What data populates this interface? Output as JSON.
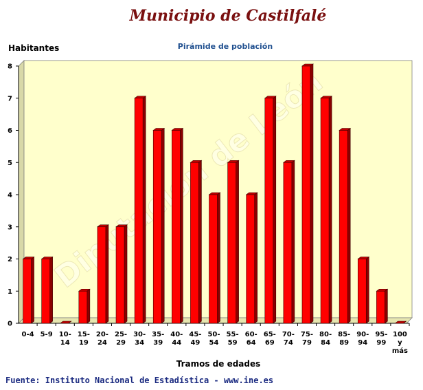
{
  "header": {
    "title": "Municipio de Castilfalé",
    "source": "Fuente: Instituto Nacional de Estadística - www.ine.es",
    "watermark": "Diputación de León"
  },
  "colors": {
    "bar_face": "#ff0000",
    "bar_side": "#8a0000",
    "bar_top": "#c00000",
    "plot_bg": "#ffffcc",
    "title": "#7a1010",
    "subtitle": "#1f4f8f",
    "source": "#1a2a80"
  },
  "chart_data": {
    "type": "bar",
    "title": "Pirámide de población",
    "xlabel": "Tramos de edades",
    "ylabel": "Habitantes",
    "ylim": [
      0,
      8
    ],
    "yticks": [
      0,
      1,
      2,
      3,
      4,
      5,
      6,
      7,
      8
    ],
    "grid": false,
    "legend": "none",
    "categories": [
      [
        "0-4"
      ],
      [
        "5-9"
      ],
      [
        "10-",
        "14"
      ],
      [
        "15-",
        "19"
      ],
      [
        "20-",
        "24"
      ],
      [
        "25-",
        "29"
      ],
      [
        "30-",
        "34"
      ],
      [
        "35-",
        "39"
      ],
      [
        "40-",
        "44"
      ],
      [
        "45-",
        "49"
      ],
      [
        "50-",
        "54"
      ],
      [
        "55-",
        "59"
      ],
      [
        "60-",
        "64"
      ],
      [
        "65-",
        "69"
      ],
      [
        "70-",
        "74"
      ],
      [
        "75-",
        "79"
      ],
      [
        "80-",
        "84"
      ],
      [
        "85-",
        "89"
      ],
      [
        "90-",
        "94"
      ],
      [
        "95-",
        "99"
      ],
      [
        "100",
        "y",
        "más"
      ]
    ],
    "values": [
      2,
      2,
      0,
      1,
      3,
      3,
      7,
      6,
      6,
      5,
      4,
      5,
      4,
      7,
      5,
      8,
      7,
      6,
      2,
      1,
      0
    ]
  }
}
